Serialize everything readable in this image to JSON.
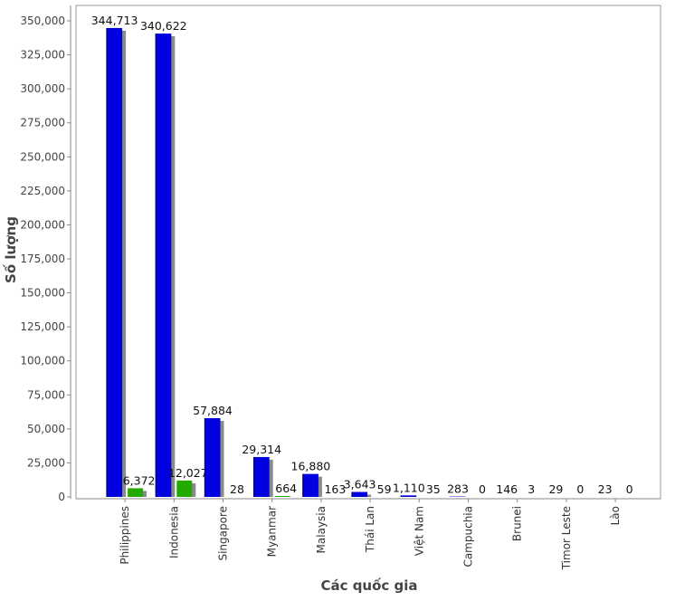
{
  "chart_data": {
    "type": "bar",
    "title": "",
    "xlabel": "Các quốc gia",
    "ylabel": "Số lượng",
    "ylim": [
      0,
      350000
    ],
    "yticks": [
      0,
      25000,
      50000,
      75000,
      100000,
      125000,
      150000,
      175000,
      200000,
      225000,
      250000,
      275000,
      300000,
      325000,
      350000
    ],
    "ytick_labels": [
      "0",
      "25,000",
      "50,000",
      "75,000",
      "100,000",
      "125,000",
      "150,000",
      "175,000",
      "200,000",
      "225,000",
      "250,000",
      "275,000",
      "300,000",
      "325,000",
      "350,000"
    ],
    "categories": [
      "Philippines",
      "Indonesia",
      "Singapore",
      "Myanmar",
      "Malaysia",
      "Thái Lan",
      "Việt Nam",
      "Campuchia",
      "Brunei",
      "Timor Leste",
      "Lào"
    ],
    "series": [
      {
        "values": [
          344713,
          340622,
          57884,
          29314,
          16880,
          3643,
          1110,
          283,
          146,
          29,
          23
        ],
        "labels": [
          "344,713",
          "340,622",
          "57,884",
          "29,314",
          "16,880",
          "3,643",
          "1,110",
          "283",
          "146",
          "29",
          "23"
        ],
        "color": "#0000e0"
      },
      {
        "values": [
          6372,
          12027,
          28,
          664,
          163,
          59,
          35,
          0,
          3,
          0,
          0
        ],
        "labels": [
          "6,372",
          "12,027",
          "28",
          "664",
          "163",
          "59",
          "35",
          "0",
          "3",
          "0",
          "0"
        ],
        "color": "#22aa00"
      }
    ],
    "grid": false,
    "legend": "none"
  }
}
